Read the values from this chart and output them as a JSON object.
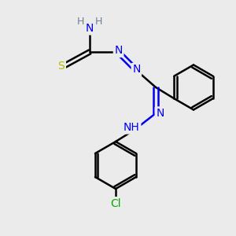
{
  "bg_color": "#ebebeb",
  "atom_colors": {
    "C": "#000000",
    "N": "#0000ee",
    "S": "#bbbb00",
    "Cl": "#00aa00",
    "H": "#708090"
  },
  "bond_color": "#000000",
  "bond_width": 1.8,
  "figsize": [
    3.0,
    3.0
  ],
  "dpi": 100
}
